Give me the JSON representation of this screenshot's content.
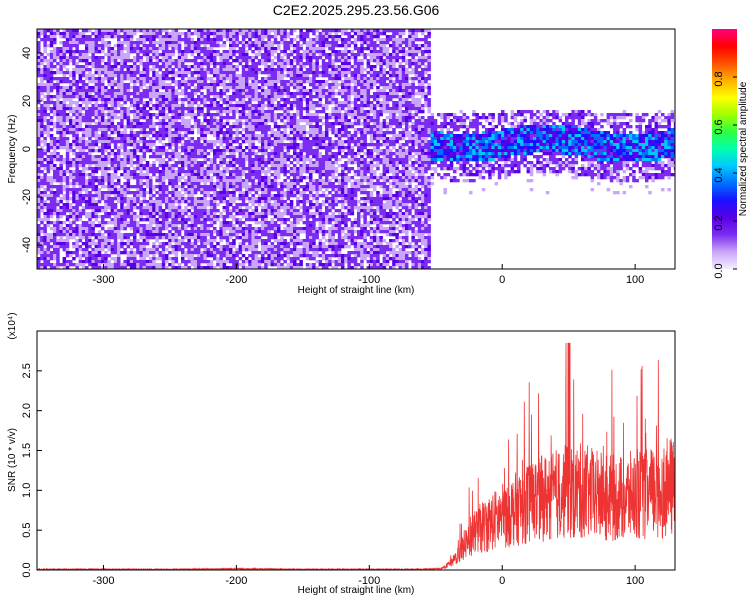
{
  "title": "C2E2.2025.295.23.56.G06",
  "chart_data": [
    {
      "type": "heatmap",
      "xlabel": "Height of straight line (km)",
      "ylabel": "Frequency (Hz)",
      "xlim": [
        -350,
        130
      ],
      "ylim": [
        -50,
        50
      ],
      "x_ticks": [
        -300,
        -200,
        -100,
        0,
        100
      ],
      "y_ticks": [
        -40,
        -20,
        0,
        20,
        40
      ],
      "colorbar": {
        "label": "Normalized spectral amplitude",
        "range": [
          0,
          1
        ],
        "ticks": [
          "0.0",
          "0.2",
          "0.4",
          "0.6",
          "0.8"
        ],
        "colors": [
          "#f4eeff",
          "#c9a6f7",
          "#7b2cf0",
          "#5a00e6",
          "#1a10ff",
          "#0070ff",
          "#00c8ff",
          "#00ffb0",
          "#30ff40",
          "#a0ff00",
          "#ffff00",
          "#ffb000",
          "#ff5000",
          "#ff0000",
          "#ff0080"
        ]
      },
      "regions": [
        {
          "x_range": [
            -350,
            -55
          ],
          "y_range": [
            -50,
            50
          ],
          "amplitude": [
            0.05,
            0.2
          ],
          "pattern": "broadband noise"
        },
        {
          "x_range": [
            -55,
            130
          ],
          "y_range": [
            -10,
            15
          ],
          "amplitude": [
            0.15,
            0.45
          ],
          "pattern": "signal band near 0 Hz"
        }
      ]
    },
    {
      "type": "line",
      "xlabel": "Height of straight line (km)",
      "ylabel": "SNR (10 * v/v)",
      "ymultiplier": "(x10⁴)",
      "xlim": [
        -350,
        130
      ],
      "ylim": [
        0,
        3
      ],
      "x_ticks": [
        -300,
        -200,
        -100,
        0,
        100
      ],
      "y_ticks": [
        "0.0",
        "0.5",
        "1.0",
        "1.5",
        "2.0",
        "2.5"
      ],
      "color": "#ee3333",
      "series": [
        {
          "x": [
            -350,
            -300,
            -250,
            -200,
            -150,
            -100,
            -60,
            -45,
            -38,
            -32,
            -25,
            -15,
            -5,
            0,
            10,
            20,
            30,
            40,
            50,
            60,
            70,
            80,
            90,
            100,
            110,
            120,
            125,
            130
          ],
          "y": [
            0.01,
            0.01,
            0.01,
            0.015,
            0.01,
            0.01,
            0.01,
            0.02,
            0.1,
            0.25,
            0.45,
            0.6,
            0.7,
            0.75,
            0.85,
            0.95,
            1.0,
            1.05,
            1.1,
            1.1,
            1.05,
            1.0,
            1.0,
            1.05,
            1.05,
            1.1,
            1.15,
            1.15
          ]
        }
      ]
    }
  ]
}
